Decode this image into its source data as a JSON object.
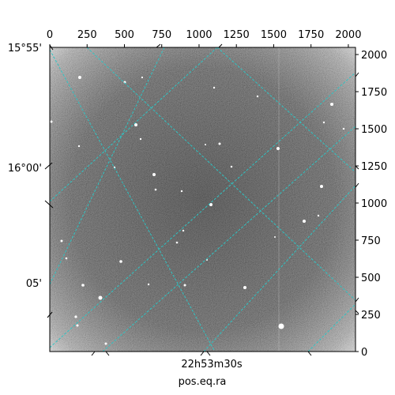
{
  "image": {
    "kind": "astronomical-fits-image",
    "colormap": "grayscale",
    "grid_color": "#2ec4c4"
  },
  "axes": {
    "top_ticks": [
      "0",
      "250",
      "500",
      "750",
      "1000",
      "1250",
      "1500",
      "1750",
      "2000"
    ],
    "right_ticks": [
      "0",
      "250",
      "500",
      "750",
      "1000",
      "1250",
      "1500",
      "1750",
      "2000"
    ],
    "left_ticks": [
      "15°55'",
      "16°00'",
      "05'"
    ],
    "bottom_tick": "22h53m30s",
    "xlabel": "pos.eq.ra",
    "pixel_range": [
      0,
      2048
    ]
  }
}
